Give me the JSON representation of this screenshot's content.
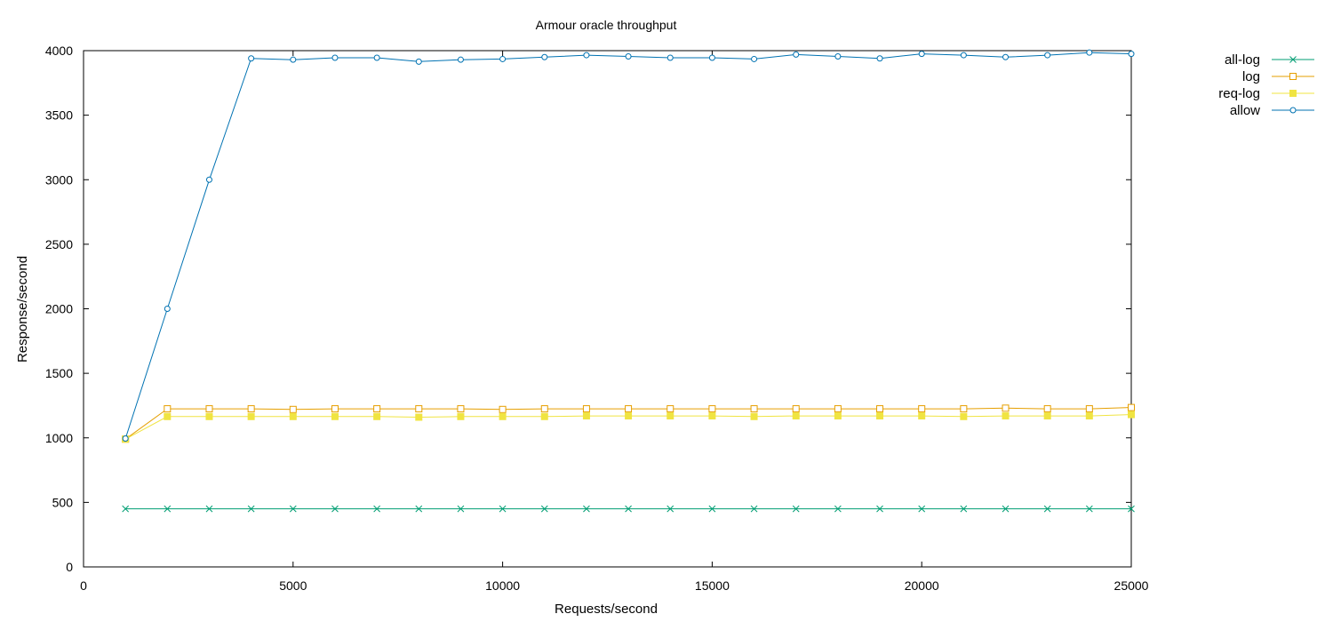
{
  "chart_data": {
    "type": "line",
    "title": "Armour oracle throughput",
    "xlabel": "Requests/second",
    "ylabel": "Response/second",
    "xlim": [
      0,
      25000
    ],
    "ylim": [
      0,
      4000
    ],
    "xticks": [
      0,
      5000,
      10000,
      15000,
      20000,
      25000
    ],
    "yticks": [
      0,
      500,
      1000,
      1500,
      2000,
      2500,
      3000,
      3500,
      4000
    ],
    "grid": false,
    "legend_position": "top-right outside",
    "x": [
      1000,
      2000,
      3000,
      4000,
      5000,
      6000,
      7000,
      8000,
      9000,
      10000,
      11000,
      12000,
      13000,
      14000,
      15000,
      16000,
      17000,
      18000,
      19000,
      20000,
      21000,
      22000,
      23000,
      24000,
      25000
    ],
    "series": [
      {
        "name": "all-log",
        "color": "#009e73",
        "marker": "x",
        "values": [
          450,
          450,
          450,
          450,
          450,
          450,
          450,
          450,
          450,
          450,
          450,
          450,
          450,
          450,
          450,
          450,
          450,
          450,
          450,
          450,
          450,
          450,
          450,
          450,
          450
        ]
      },
      {
        "name": "log",
        "color": "#e69f00",
        "marker": "open-square",
        "values": [
          990,
          1225,
          1225,
          1225,
          1220,
          1225,
          1225,
          1225,
          1225,
          1220,
          1225,
          1225,
          1225,
          1225,
          1225,
          1225,
          1225,
          1225,
          1225,
          1225,
          1225,
          1230,
          1225,
          1225,
          1235
        ]
      },
      {
        "name": "req-log",
        "color": "#f0e442",
        "marker": "filled-square",
        "values": [
          990,
          1165,
          1165,
          1165,
          1165,
          1165,
          1165,
          1160,
          1165,
          1165,
          1165,
          1170,
          1170,
          1170,
          1170,
          1165,
          1170,
          1170,
          1170,
          1170,
          1165,
          1170,
          1170,
          1170,
          1180
        ]
      },
      {
        "name": "allow",
        "color": "#0072b2",
        "marker": "open-circle",
        "values": [
          995,
          2000,
          3000,
          3940,
          3930,
          3945,
          3945,
          3915,
          3930,
          3935,
          3950,
          3965,
          3955,
          3945,
          3945,
          3935,
          3970,
          3955,
          3940,
          3975,
          3965,
          3950,
          3965,
          3985,
          3975
        ]
      }
    ]
  }
}
